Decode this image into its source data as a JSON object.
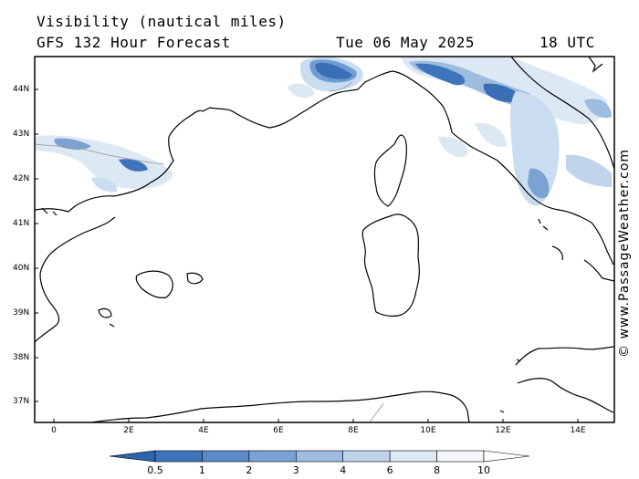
{
  "header": {
    "title_line1": "Visibility (nautical miles)",
    "title_line2": "GFS 132 Hour Forecast",
    "date": "Tue 06 May 2025",
    "time": "18 UTC"
  },
  "watermark": "© www.PassageWeather.com",
  "map": {
    "lat_labels": [
      "44N",
      "43N",
      "42N",
      "41N",
      "40N",
      "39N",
      "38N",
      "37N"
    ],
    "lon_labels": [
      "0",
      "2E",
      "4E",
      "6E",
      "8E",
      "10E",
      "12E",
      "14E"
    ],
    "colors": {
      "land_outline": "#000000",
      "border": "#999999",
      "vis_low": "#3a6fb6",
      "vis_mid": "#6f9dd3",
      "vis_high": "#c9dcf0"
    }
  },
  "colorbar": {
    "labels": [
      "0.5",
      "1",
      "2",
      "3",
      "4",
      "6",
      "8",
      "10"
    ],
    "colors": [
      "#2d64ae",
      "#3e74bb",
      "#5a8bc8",
      "#7aa3d4",
      "#9dbce0",
      "#bfd3eb",
      "#dde8f5",
      "#f3f7fc",
      "#ffffff"
    ]
  }
}
